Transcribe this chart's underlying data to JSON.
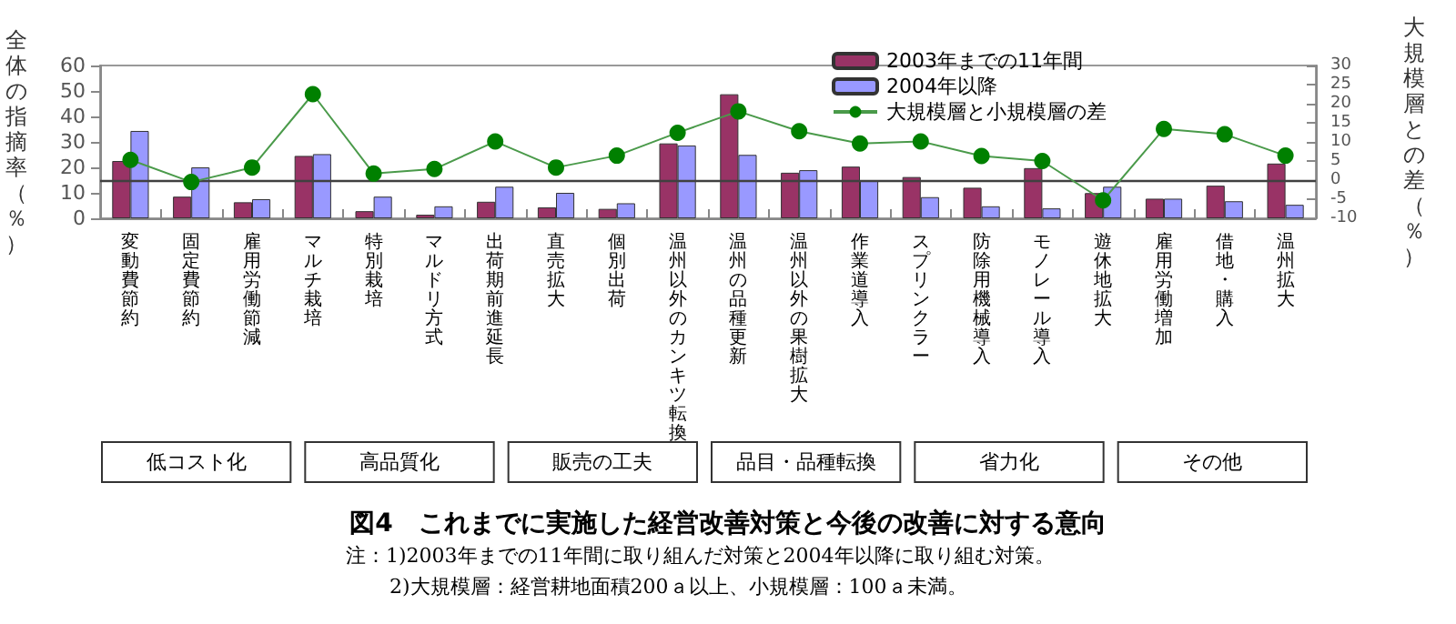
{
  "chart_data": {
    "type": "bar",
    "title": "図4　これまでに実施した経営改善対策と今後の改善に対する意向",
    "ylabel": "全体の指摘率（％）",
    "y2label": "大規模層との差（％）",
    "categories": [
      "変動費節約",
      "固定費節約",
      "雇用労働節減",
      "マルチ栽培",
      "特別栽培",
      "マルドリ方式",
      "出荷期前進延長",
      "直売拡大",
      "個別出荷",
      "温州以外のカンキツ転換",
      "温州の品種更新",
      "温州以外の果樹拡大",
      "作業道導入",
      "スプリンクラー",
      "防除用機械導入",
      "モノレール導入",
      "遊休地拡大",
      "雇用労働増加",
      "借地・購入",
      "温州拡大"
    ],
    "series": [
      {
        "name": "2003年までの11年間",
        "color": "#993366",
        "values": [
          22.5,
          8.5,
          6.3,
          24.5,
          2.8,
          1.4,
          6.5,
          4.3,
          3.7,
          29.4,
          48.7,
          17.9,
          20.3,
          16.2,
          12,
          19.7,
          9.9,
          7.7,
          12.8,
          21.5
        ]
      },
      {
        "name": "2004年以降",
        "color": "#9999ff",
        "values": [
          34.3,
          20,
          7.5,
          25.2,
          8.5,
          4.7,
          12.4,
          10,
          5.9,
          28.6,
          24.9,
          18.9,
          14.8,
          8.3,
          4.7,
          3.9,
          12.4,
          7.7,
          6.7,
          5.3
        ]
      },
      {
        "name": "大規模層と小規模層の差",
        "type": "line",
        "axis": "y2",
        "color": "#008000",
        "values": [
          5.3,
          -0.5,
          3.3,
          22.5,
          1.7,
          2.9,
          10.1,
          3.3,
          6.4,
          12.4,
          18,
          12.8,
          9.6,
          10.1,
          6.3,
          5,
          -5.3,
          13.4,
          12,
          6.4
        ]
      }
    ],
    "ylim": [
      0,
      60
    ],
    "yticks": [
      0,
      10,
      20,
      30,
      40,
      50,
      60
    ],
    "y2lim": [
      -10,
      30
    ],
    "y2ticks": [
      -10,
      -5,
      0,
      5,
      10,
      15,
      20,
      25,
      30
    ],
    "ref_lines": [
      {
        "axis": "y2",
        "value": 0,
        "color": "#404040"
      }
    ],
    "marker": "circle",
    "grid": false,
    "legend": "top right",
    "annotations": [
      "低コスト化",
      "高品質化",
      "販売の工夫",
      "品目・品種転換",
      "省力化",
      "その他",
      "注：1)2003年までの11年間に取り組んだ対策と2004年以降に取り組む対策。\n2)大規模層：経営耕地面積200ａ以上、小規模層：100ａ未満。"
    ]
  }
}
